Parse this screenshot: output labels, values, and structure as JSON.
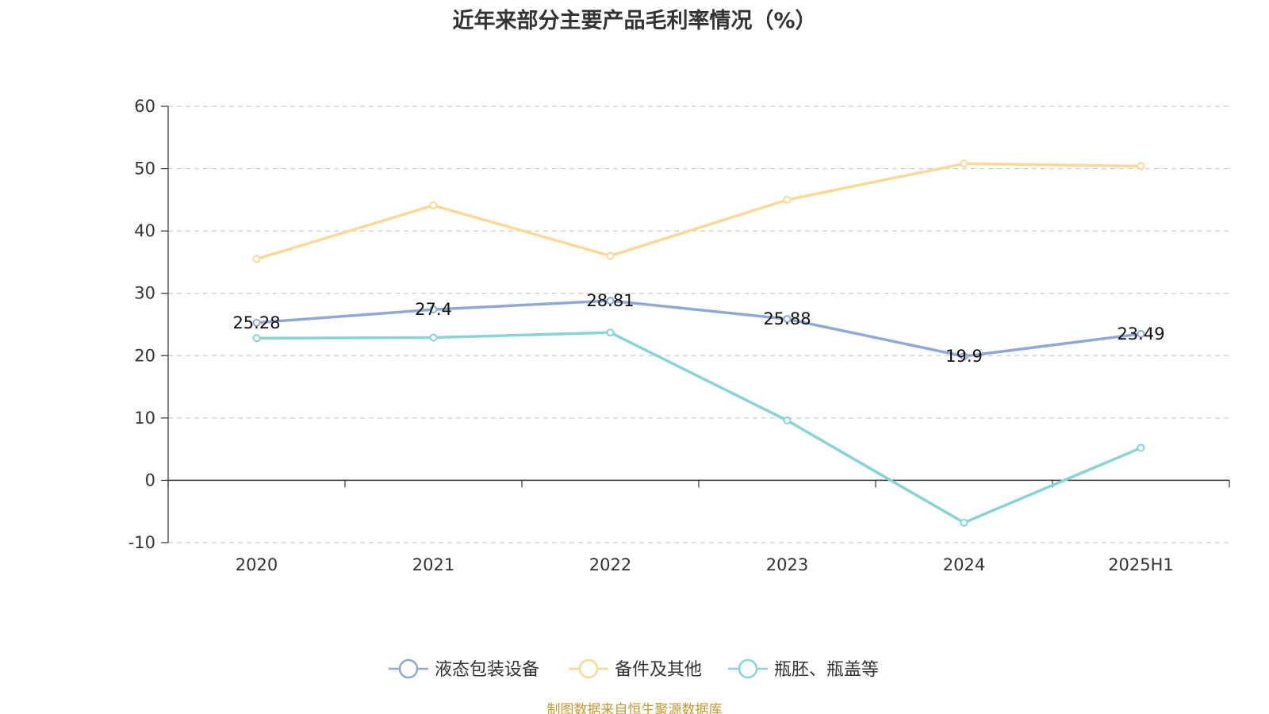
{
  "title": "近年来部分主要产品毛利率情况（%）",
  "source": "制图数据来自恒生聚源数据库",
  "chart_data": {
    "type": "line",
    "categories": [
      "2020",
      "2021",
      "2022",
      "2023",
      "2024",
      "2025H1"
    ],
    "ylim": [
      -10,
      60
    ],
    "yticks": [
      60,
      50,
      40,
      30,
      20,
      10,
      0,
      -10
    ],
    "grid": true,
    "legend_position": "bottom",
    "series": [
      {
        "name": "液态包装设备",
        "color": "#8fa9d6",
        "values": [
          25.28,
          27.4,
          28.81,
          25.88,
          19.9,
          23.49
        ],
        "labels": [
          "25.28",
          "27.4",
          "28.81",
          "25.88",
          "19.9",
          "23.49"
        ]
      },
      {
        "name": "备件及其他",
        "color": "#fad997",
        "values": [
          35.5,
          44.1,
          36.0,
          45.0,
          50.8,
          50.4
        ]
      },
      {
        "name": "瓶胚、瓶盖等",
        "color": "#86d3d8",
        "values": [
          22.8,
          22.9,
          23.7,
          9.6,
          -6.8,
          5.2
        ]
      }
    ]
  }
}
